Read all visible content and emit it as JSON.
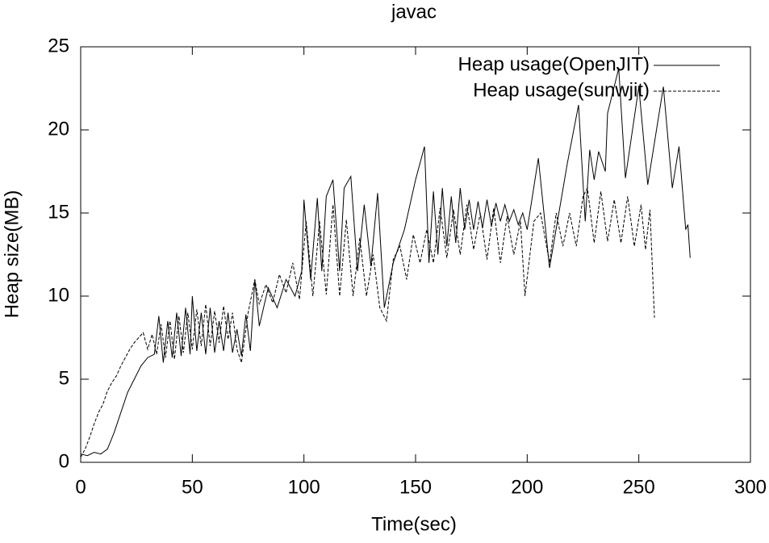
{
  "chart_data": {
    "type": "line",
    "title": "javac",
    "x_label": "Time(sec)",
    "y_label": "Heap size(MB)",
    "xlim": [
      0,
      300
    ],
    "xticks": [
      0,
      50,
      100,
      150,
      200,
      250,
      300
    ],
    "ylim": [
      0,
      25
    ],
    "yticks": [
      0,
      5,
      10,
      15,
      20,
      25
    ],
    "legend": "top-right",
    "grid": false,
    "series": [
      {
        "name": "Heap usage(OpenJIT)",
        "color": "#000000",
        "dashed": false,
        "x": [
          0,
          3,
          6,
          9,
          12,
          15,
          18,
          21,
          24,
          27,
          30,
          33,
          35,
          37,
          39,
          41,
          43,
          45,
          47,
          49,
          50,
          52,
          54,
          56,
          58,
          60,
          62,
          64,
          66,
          68,
          70,
          72,
          74,
          76,
          78,
          80,
          84,
          88,
          92,
          96,
          99,
          100,
          103,
          106,
          108,
          110,
          113,
          116,
          118,
          121,
          124,
          127,
          130,
          133,
          136,
          140,
          145,
          150,
          154,
          156,
          158,
          160,
          162,
          164,
          166,
          168,
          170,
          172,
          174,
          176,
          178,
          180,
          182,
          184,
          186,
          188,
          190,
          192,
          194,
          196,
          198,
          200,
          205,
          210,
          218,
          223,
          226,
          228,
          230,
          232,
          235,
          236,
          241,
          244,
          250,
          254,
          261,
          265,
          268,
          271,
          272,
          273
        ],
        "values": [
          0.5,
          0.4,
          0.6,
          0.5,
          0.8,
          1.8,
          3,
          4.2,
          5,
          5.8,
          6.3,
          6.5,
          8.8,
          6,
          8.5,
          6.3,
          9,
          6.4,
          9.3,
          6.5,
          10,
          6.7,
          9,
          6.5,
          9.3,
          6.6,
          8.5,
          6.7,
          9,
          6.6,
          8,
          6.4,
          8.9,
          6.7,
          11,
          8.2,
          10.5,
          9.3,
          11,
          10,
          11.5,
          15.8,
          11,
          15.9,
          11.5,
          16,
          17,
          11.5,
          16.5,
          17.2,
          11.5,
          15.5,
          11.8,
          16.2,
          9.3,
          12,
          14,
          17,
          19,
          12,
          16.3,
          12.5,
          16.5,
          13,
          16,
          13.2,
          16.5,
          14,
          15.8,
          14,
          15.7,
          14.1,
          15.8,
          14.2,
          15.6,
          14.5,
          15.5,
          14.5,
          15.2,
          14.3,
          15,
          14,
          18.3,
          11.7,
          18,
          21.5,
          14.5,
          18.8,
          17,
          18.7,
          17.5,
          21,
          23.7,
          17.1,
          22.6,
          16.7,
          22.6,
          16.5,
          19,
          14,
          14.3,
          12.3
        ]
      },
      {
        "name": "Heap usage(sunwjit)",
        "color": "#000000",
        "dashed": true,
        "x": [
          0,
          2,
          4,
          6,
          8,
          10,
          12,
          14,
          16,
          18,
          20,
          22,
          24,
          26,
          28,
          30,
          32,
          34,
          36,
          38,
          40,
          42,
          44,
          46,
          48,
          50,
          52,
          54,
          56,
          58,
          60,
          62,
          64,
          66,
          68,
          70,
          72,
          75,
          78,
          80,
          83,
          86,
          89,
          92,
          95,
          98,
          101,
          104,
          107,
          110,
          113,
          116,
          119,
          122,
          125,
          128,
          131,
          134,
          137,
          140,
          143,
          146,
          149,
          152,
          155,
          158,
          161,
          164,
          167,
          170,
          173,
          176,
          179,
          182,
          185,
          188,
          191,
          194,
          197,
          199,
          203,
          206,
          210,
          213,
          216,
          219,
          222,
          225,
          227,
          230,
          233,
          236,
          239,
          242,
          245,
          248,
          251,
          253,
          255,
          257
        ],
        "values": [
          0.3,
          0.8,
          1.5,
          2.3,
          3,
          3.5,
          4.3,
          4.8,
          5.2,
          5.8,
          6.3,
          6.8,
          7.2,
          7.5,
          7.8,
          6.8,
          7.7,
          6.5,
          8.3,
          6.3,
          8.5,
          6.2,
          8.8,
          6.6,
          9,
          6.8,
          9.2,
          7,
          9.5,
          7,
          9.1,
          7.2,
          9.4,
          7.4,
          9,
          6.8,
          6,
          9,
          11,
          9.5,
          10.7,
          9.6,
          11.3,
          10.2,
          12,
          9.8,
          14.5,
          10,
          14.5,
          10.1,
          15.5,
          10,
          14.6,
          10,
          13.5,
          10,
          12.5,
          9.3,
          8.5,
          12.2,
          13,
          11,
          13.7,
          12,
          14,
          12,
          15.3,
          12.3,
          15.2,
          12.5,
          15.5,
          12.8,
          15,
          12.2,
          15.3,
          12,
          14.8,
          12.5,
          14.5,
          10,
          14.5,
          15,
          12,
          15,
          13,
          15,
          13,
          16,
          16.5,
          13.2,
          16.3,
          13.3,
          15.8,
          13.2,
          16,
          13,
          15.5,
          12.8,
          15.2,
          8.7
        ]
      }
    ]
  }
}
